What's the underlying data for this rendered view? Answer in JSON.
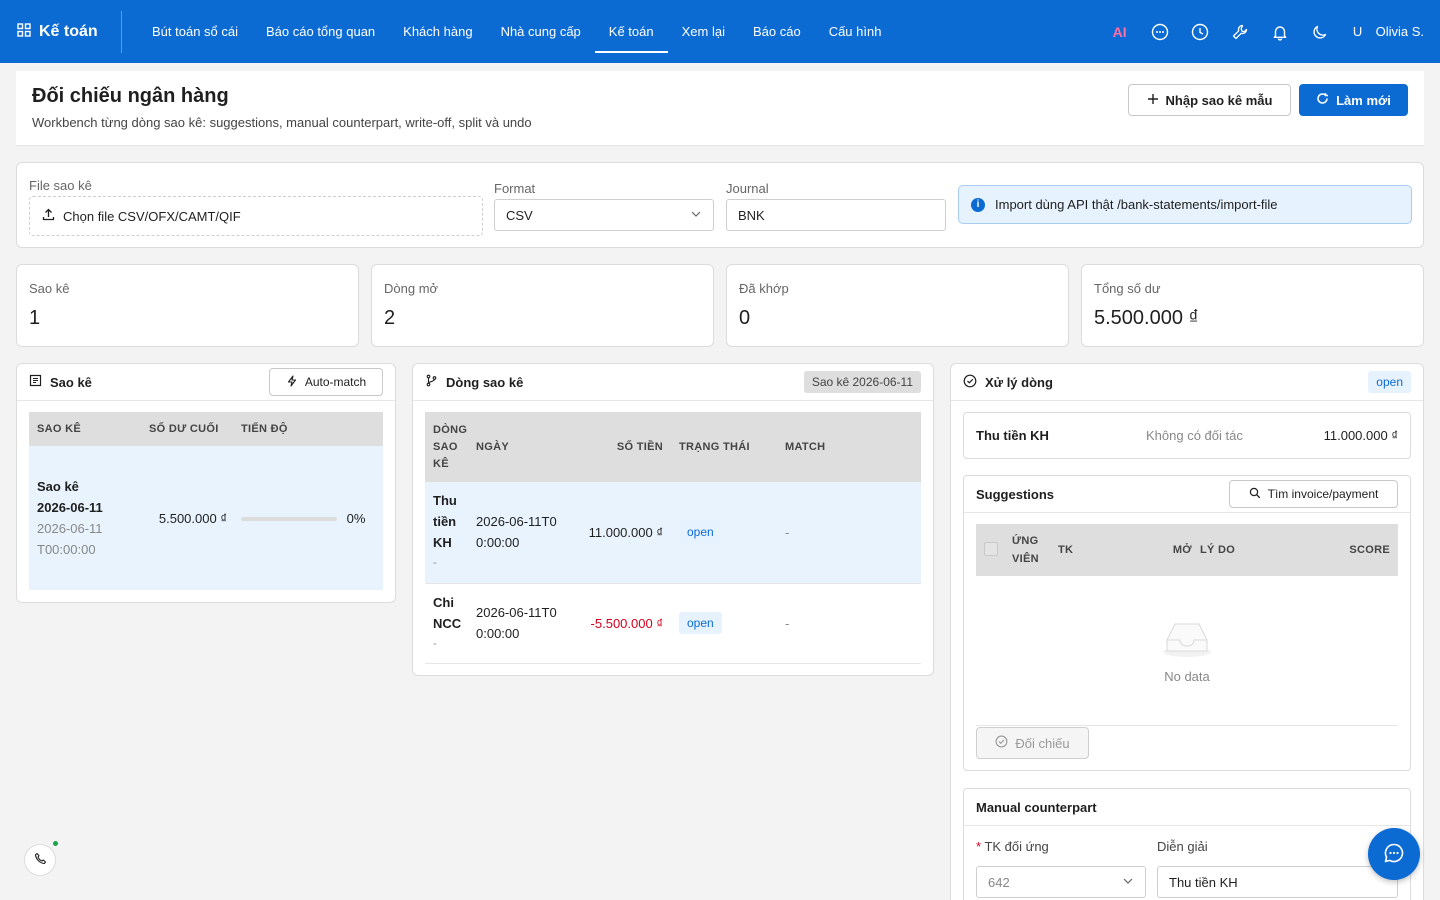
{
  "app": {
    "brand": "Kế toán",
    "nav": [
      {
        "label": "Bút toán sổ cái"
      },
      {
        "label": "Báo cáo tổng quan"
      },
      {
        "label": "Khách hàng"
      },
      {
        "label": "Nhà cung cấp"
      },
      {
        "label": "Kế toán",
        "active": true
      },
      {
        "label": "Xem lại"
      },
      {
        "label": "Báo cáo"
      },
      {
        "label": "Cấu hình"
      }
    ],
    "ai_label": "AI",
    "user_initial": "U",
    "user_name": "Olivia S."
  },
  "header": {
    "title": "Đối chiếu ngân hàng",
    "subtitle": "Workbench từng dòng sao kê: suggestions, manual counterpart, write-off, split và undo",
    "import_button": "Nhập sao kê mẫu",
    "refresh_button": "Làm mới"
  },
  "import": {
    "file_label": "File sao kê",
    "file_button": "Chọn file CSV/OFX/CAMT/QIF",
    "format_label": "Format",
    "format_value": "CSV",
    "journal_label": "Journal",
    "journal_value": "BNK",
    "info_text": "Import dùng API thật /bank-statements/import-file"
  },
  "stats": [
    {
      "label": "Sao kê",
      "value": "1"
    },
    {
      "label": "Dòng mở",
      "value": "2"
    },
    {
      "label": "Đã khớp",
      "value": "0"
    },
    {
      "label": "Tổng số dư",
      "value": "5.500.000 ₫"
    }
  ],
  "statements_panel": {
    "title": "Sao kê",
    "auto_match": "Auto-match",
    "columns": [
      "Sao kê",
      "Số dư cuối",
      "Tiến độ"
    ],
    "rows": [
      {
        "name": "Sao kê 2026-06-11",
        "date": "2026-06-11T00:00:00",
        "balance": "5.500.000 ₫",
        "progress": 0,
        "progress_label": "0%"
      }
    ]
  },
  "lines_panel": {
    "title": "Dòng sao kê",
    "tag": "Sao kê 2026-06-11",
    "columns": [
      "Dòng sao kê",
      "Ngày",
      "Số tiền",
      "Trạng thái",
      "Match"
    ],
    "rows": [
      {
        "line": "Thu tiền KH",
        "sub": "-",
        "date": "2026-06-11T00:00:00",
        "amount": "11.000.000 ₫",
        "negative": false,
        "status": "open",
        "match": "-"
      },
      {
        "line": "Chi NCC",
        "sub": "-",
        "date": "2026-06-11T00:00:00",
        "amount": "-5.500.000 ₫",
        "negative": true,
        "status": "open",
        "match": "-"
      }
    ]
  },
  "process_panel": {
    "title": "Xử lý dòng",
    "status": "open",
    "line_name": "Thu tiền KH",
    "partner": "Không có đối tác",
    "amount": "11.000.000 ₫",
    "suggestions": {
      "title": "Suggestions",
      "find_button": "Tìm invoice/payment",
      "columns": [
        "Ứng viên",
        "TK",
        "Mở",
        "Lý do",
        "Score"
      ],
      "empty": "No data",
      "reconcile_button": "Đối chiếu"
    },
    "manual": {
      "title": "Manual counterpart",
      "account_label": "TK đối ứng",
      "account_value": "642",
      "desc_label": "Diễn giải",
      "desc_value": "Thu tiền KH"
    }
  },
  "colors": {
    "primary": "#0b6bd3",
    "negative": "#d6001c",
    "accent_ai": "#ff6fa8"
  }
}
